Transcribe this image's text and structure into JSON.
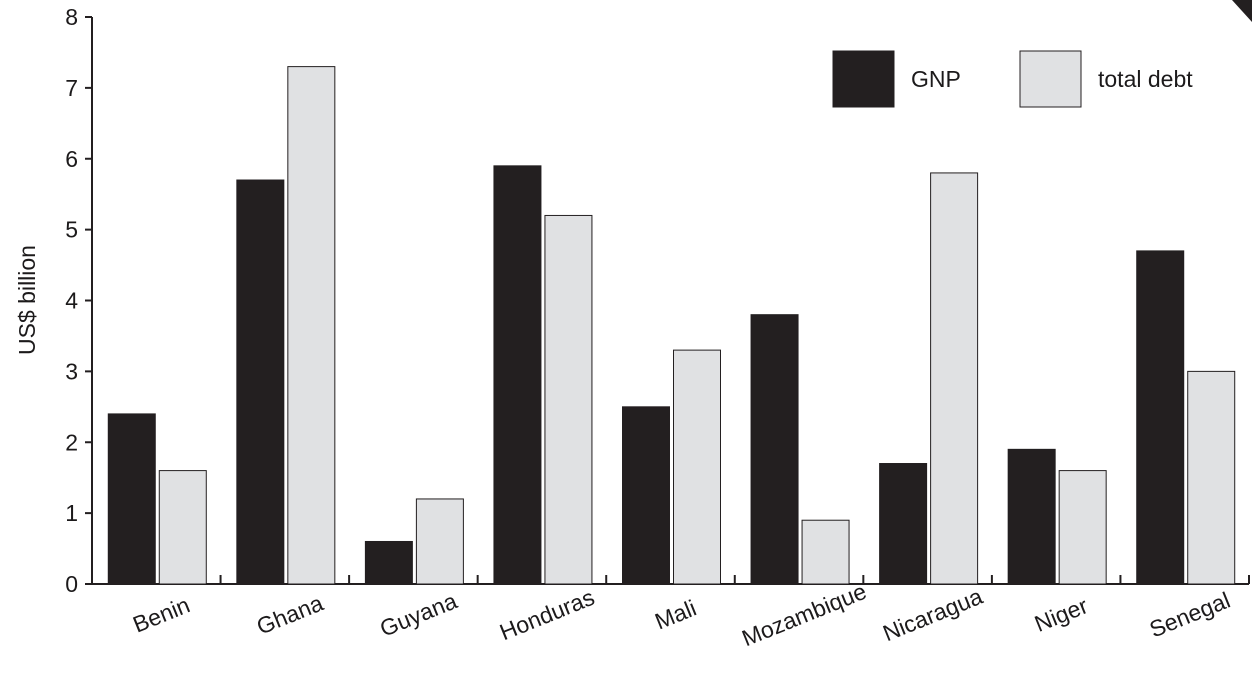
{
  "chart_data": {
    "type": "bar",
    "title": "",
    "xlabel": "",
    "ylabel": "US$ billion",
    "ylim": [
      0,
      8
    ],
    "yticks": [
      0,
      1,
      2,
      3,
      4,
      5,
      6,
      7,
      8
    ],
    "grid": false,
    "legend_position": "top-right",
    "categories": [
      "Benin",
      "Ghana",
      "Guyana",
      "Honduras",
      "Mali",
      "Mozambique",
      "Nicaragua",
      "Niger",
      "Senegal"
    ],
    "series": [
      {
        "name": "GNP",
        "color": "#231f20",
        "values": [
          2.4,
          5.7,
          0.6,
          5.9,
          2.5,
          3.8,
          1.7,
          1.9,
          4.7
        ]
      },
      {
        "name": "total debt",
        "color": "#e0e1e3",
        "values": [
          1.6,
          7.3,
          1.2,
          5.2,
          3.3,
          0.9,
          5.8,
          1.6,
          3.0
        ]
      }
    ]
  }
}
